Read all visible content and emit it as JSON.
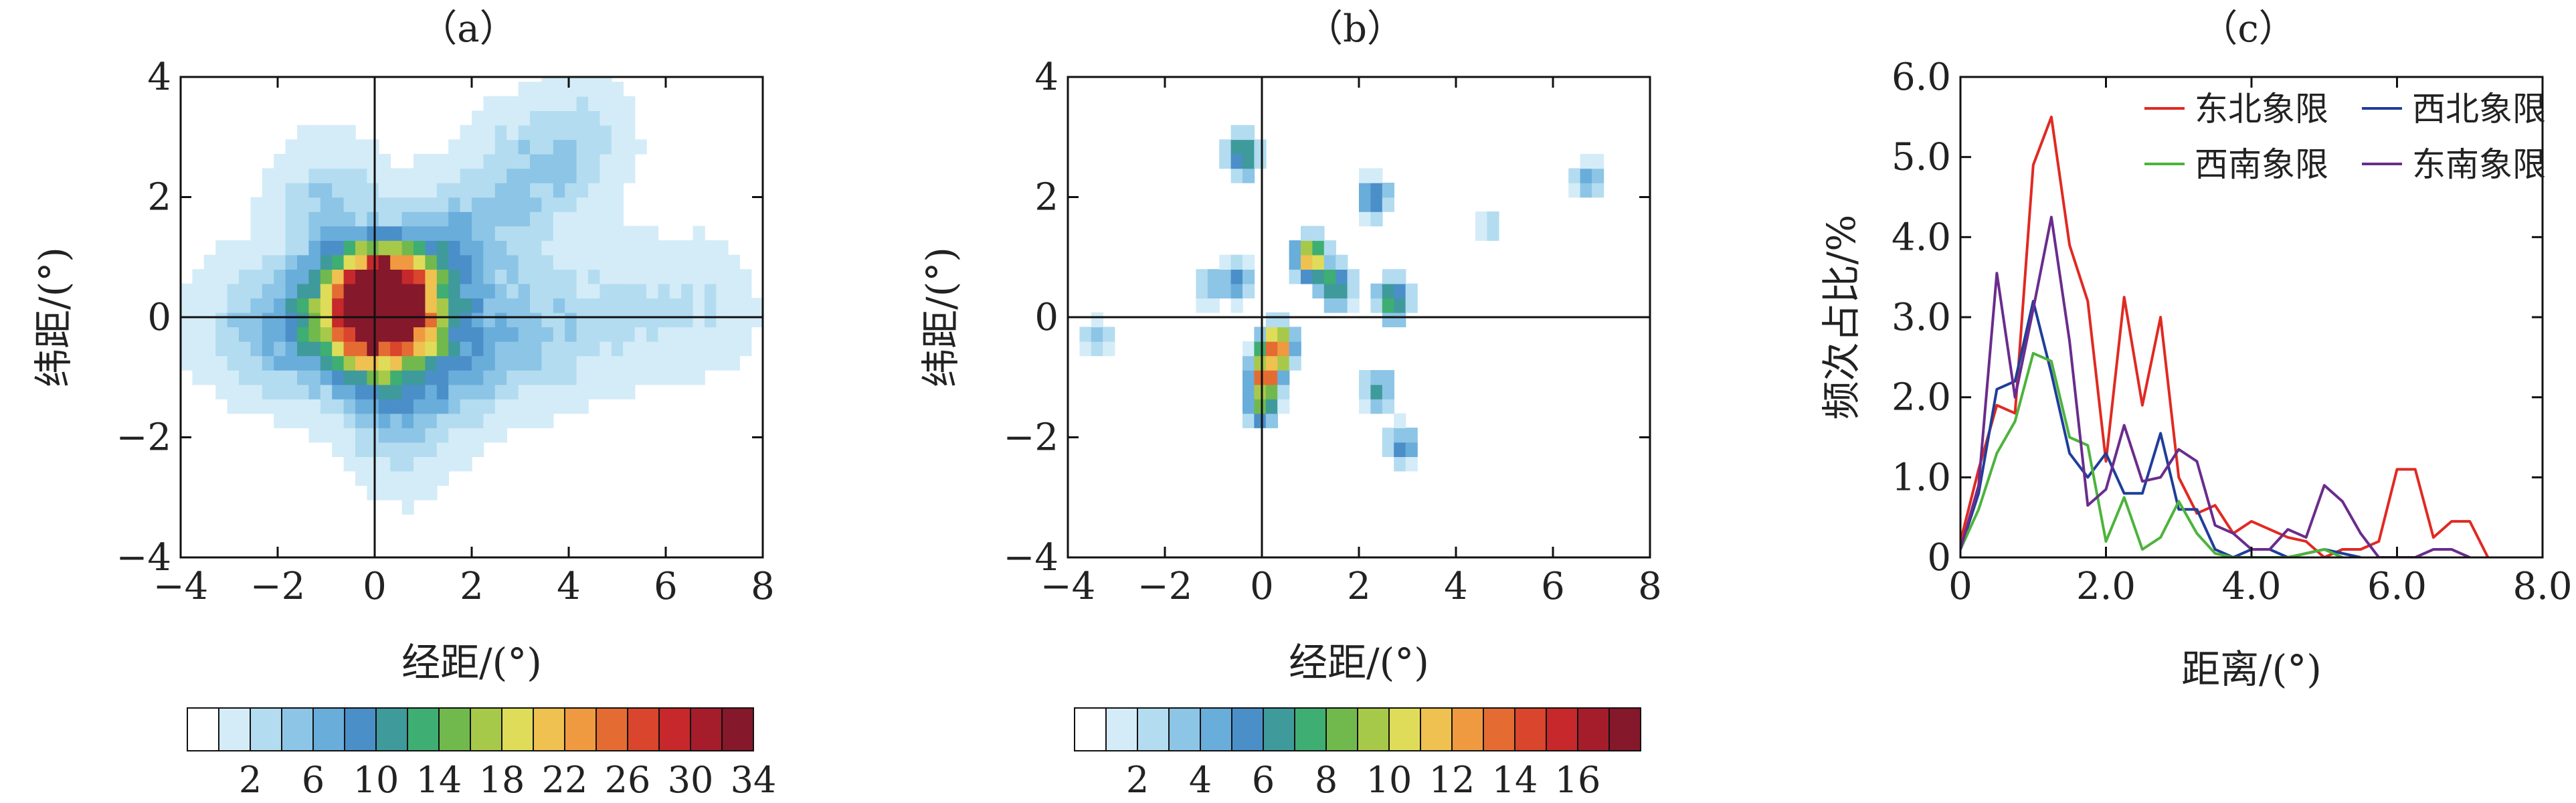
{
  "panels": {
    "a": {
      "label": "（a）",
      "xlabel": "经距/(°)",
      "ylabel": "纬距/(°)"
    },
    "b": {
      "label": "（b）",
      "xlabel": "经距/(°)",
      "ylabel": "纬距/(°)"
    },
    "c": {
      "label": "（c）",
      "xlabel": "距离/(°)",
      "ylabel": "频次占比/%"
    }
  },
  "palette": [
    "#ffffff",
    "#d4ecf7",
    "#b3dcf0",
    "#8cc5e6",
    "#69addb",
    "#4b8fc9",
    "#3f9a9c",
    "#3fae72",
    "#72b94d",
    "#a7c94a",
    "#dfdc5a",
    "#efc150",
    "#ef9a40",
    "#e46c33",
    "#d9452d",
    "#c6282b",
    "#a51d2b",
    "#85182a"
  ],
  "chart_data": [
    {
      "type": "heatmap",
      "panel": "a",
      "title": "（a）",
      "xlabel": "经距/(°)",
      "ylabel": "纬距/(°)",
      "xlim": [
        -4,
        8
      ],
      "ylim": [
        -4,
        4
      ],
      "xticks": [
        "−4",
        "−2",
        "0",
        "2",
        "4",
        "6",
        "8"
      ],
      "yticks": [
        "−4",
        "−2",
        "0",
        "2",
        "4"
      ],
      "colorbar_ticks": [
        "2",
        "6",
        "10",
        "14",
        "18",
        "22",
        "26",
        "30",
        "34"
      ],
      "hotspots": [
        {
          "x": 0.1,
          "y": 0.3,
          "value": 36
        },
        {
          "x": -0.5,
          "y": 0.1,
          "value": 18
        },
        {
          "x": 0.7,
          "y": 0.2,
          "value": 16
        },
        {
          "x": 0.2,
          "y": -0.8,
          "value": 10
        },
        {
          "x": -1.6,
          "y": -0.2,
          "value": 8
        },
        {
          "x": 1.8,
          "y": -0.7,
          "value": 6
        },
        {
          "x": 1.5,
          "y": 1.2,
          "value": 6
        },
        {
          "x": 3.0,
          "y": 2.3,
          "value": 5
        },
        {
          "x": 4.2,
          "y": 2.9,
          "value": 4
        },
        {
          "x": -1.0,
          "y": 1.9,
          "value": 5
        },
        {
          "x": 3.5,
          "y": -0.4,
          "value": 4
        },
        {
          "x": 5.2,
          "y": 0.0,
          "value": 3
        },
        {
          "x": 6.8,
          "y": 0.2,
          "value": 3
        },
        {
          "x": -3.0,
          "y": -0.1,
          "value": 3
        },
        {
          "x": 0.6,
          "y": -2.0,
          "value": 3
        }
      ]
    },
    {
      "type": "heatmap",
      "panel": "b",
      "title": "（b）",
      "xlabel": "经距/(°)",
      "ylabel": "纬距/(°)",
      "xlim": [
        -4,
        8
      ],
      "ylim": [
        -4,
        4
      ],
      "xticks": [
        "−4",
        "−2",
        "0",
        "2",
        "4",
        "6",
        "8"
      ],
      "yticks": [
        "−4",
        "−2",
        "0",
        "2",
        "4"
      ],
      "colorbar_ticks": [
        "2",
        "4",
        "6",
        "8",
        "10",
        "12",
        "14",
        "16"
      ],
      "hotspots": [
        {
          "x": 0.3,
          "y": -0.5,
          "value": 15
        },
        {
          "x": 0.05,
          "y": -1.0,
          "value": 12
        },
        {
          "x": 1.0,
          "y": 1.0,
          "value": 12
        },
        {
          "x": 1.5,
          "y": 0.5,
          "value": 8
        },
        {
          "x": 2.7,
          "y": 0.3,
          "value": 9
        },
        {
          "x": -0.4,
          "y": 2.7,
          "value": 8
        },
        {
          "x": 2.3,
          "y": 2.0,
          "value": 6
        },
        {
          "x": 0.0,
          "y": -1.5,
          "value": 7
        },
        {
          "x": -0.5,
          "y": 0.6,
          "value": 5
        },
        {
          "x": 2.4,
          "y": -1.2,
          "value": 5
        },
        {
          "x": 2.9,
          "y": -2.1,
          "value": 5
        },
        {
          "x": 6.7,
          "y": 2.3,
          "value": 4
        },
        {
          "x": -1.1,
          "y": 0.5,
          "value": 3
        },
        {
          "x": -3.4,
          "y": -0.3,
          "value": 3
        },
        {
          "x": 4.7,
          "y": 1.5,
          "value": 2
        }
      ]
    },
    {
      "type": "line",
      "panel": "c",
      "title": "（c）",
      "xlabel": "距离/(°)",
      "ylabel": "频次占比/%",
      "xlim": [
        0,
        8
      ],
      "ylim": [
        0,
        6
      ],
      "xticks": [
        "0",
        "2.0",
        "4.0",
        "6.0",
        "8.0"
      ],
      "yticks": [
        "0",
        "1.0",
        "2.0",
        "3.0",
        "4.0",
        "5.0",
        "6.0"
      ],
      "legend_position": "top-right",
      "series": [
        {
          "name": "东北象限",
          "color": "#e02a22",
          "points": [
            [
              0,
              0.2
            ],
            [
              0.25,
              1.1
            ],
            [
              0.5,
              1.9
            ],
            [
              0.75,
              1.8
            ],
            [
              1.0,
              4.9
            ],
            [
              1.25,
              5.5
            ],
            [
              1.5,
              3.9
            ],
            [
              1.75,
              3.2
            ],
            [
              2.0,
              1.2
            ],
            [
              2.25,
              3.25
            ],
            [
              2.5,
              1.9
            ],
            [
              2.75,
              3.0
            ],
            [
              3.0,
              1.0
            ],
            [
              3.25,
              0.55
            ],
            [
              3.5,
              0.65
            ],
            [
              3.75,
              0.3
            ],
            [
              4.0,
              0.45
            ],
            [
              4.25,
              0.35
            ],
            [
              4.5,
              0.25
            ],
            [
              4.75,
              0.2
            ],
            [
              5.0,
              0.0
            ],
            [
              5.25,
              0.1
            ],
            [
              5.5,
              0.1
            ],
            [
              5.75,
              0.2
            ],
            [
              6.0,
              1.1
            ],
            [
              6.25,
              1.1
            ],
            [
              6.5,
              0.25
            ],
            [
              6.75,
              0.45
            ],
            [
              7.0,
              0.45
            ],
            [
              7.25,
              0.0
            ]
          ]
        },
        {
          "name": "西北象限",
          "color": "#1f3e9a",
          "points": [
            [
              0,
              0.1
            ],
            [
              0.25,
              0.8
            ],
            [
              0.5,
              2.1
            ],
            [
              0.75,
              2.2
            ],
            [
              1.0,
              3.2
            ],
            [
              1.25,
              2.3
            ],
            [
              1.5,
              1.3
            ],
            [
              1.75,
              1.0
            ],
            [
              2.0,
              1.3
            ],
            [
              2.25,
              0.8
            ],
            [
              2.5,
              0.8
            ],
            [
              2.75,
              1.55
            ],
            [
              3.0,
              0.6
            ],
            [
              3.25,
              0.6
            ],
            [
              3.5,
              0.1
            ],
            [
              3.75,
              0.0
            ],
            [
              4.0,
              0.1
            ],
            [
              4.25,
              0.1
            ],
            [
              4.5,
              0.0
            ],
            [
              5.0,
              0.1
            ],
            [
              5.5,
              0.0
            ]
          ]
        },
        {
          "name": "西南象限",
          "color": "#4db33c",
          "points": [
            [
              0,
              0.1
            ],
            [
              0.25,
              0.6
            ],
            [
              0.5,
              1.3
            ],
            [
              0.75,
              1.7
            ],
            [
              1.0,
              2.55
            ],
            [
              1.25,
              2.45
            ],
            [
              1.5,
              1.5
            ],
            [
              1.75,
              1.4
            ],
            [
              2.0,
              0.2
            ],
            [
              2.25,
              0.75
            ],
            [
              2.5,
              0.1
            ],
            [
              2.75,
              0.25
            ],
            [
              3.0,
              0.7
            ],
            [
              3.25,
              0.3
            ],
            [
              3.5,
              0.05
            ],
            [
              3.75,
              0.0
            ],
            [
              4.5,
              0.0
            ],
            [
              5.0,
              0.1
            ],
            [
              5.25,
              0.0
            ]
          ]
        },
        {
          "name": "东南象限",
          "color": "#6a2c8c",
          "points": [
            [
              0,
              0.1
            ],
            [
              0.25,
              0.9
            ],
            [
              0.5,
              3.55
            ],
            [
              0.75,
              2.0
            ],
            [
              1.0,
              3.1
            ],
            [
              1.25,
              4.25
            ],
            [
              1.5,
              2.7
            ],
            [
              1.75,
              0.65
            ],
            [
              2.0,
              0.85
            ],
            [
              2.25,
              1.65
            ],
            [
              2.5,
              0.95
            ],
            [
              2.75,
              1.0
            ],
            [
              3.0,
              1.35
            ],
            [
              3.25,
              1.2
            ],
            [
              3.5,
              0.4
            ],
            [
              3.75,
              0.3
            ],
            [
              4.0,
              0.1
            ],
            [
              4.25,
              0.1
            ],
            [
              4.5,
              0.35
            ],
            [
              4.75,
              0.25
            ],
            [
              5.0,
              0.9
            ],
            [
              5.25,
              0.7
            ],
            [
              5.5,
              0.3
            ],
            [
              5.75,
              0.0
            ],
            [
              6.0,
              0.0
            ],
            [
              6.25,
              0.0
            ],
            [
              6.5,
              0.1
            ],
            [
              6.75,
              0.1
            ],
            [
              7.0,
              0.0
            ]
          ]
        }
      ]
    }
  ]
}
